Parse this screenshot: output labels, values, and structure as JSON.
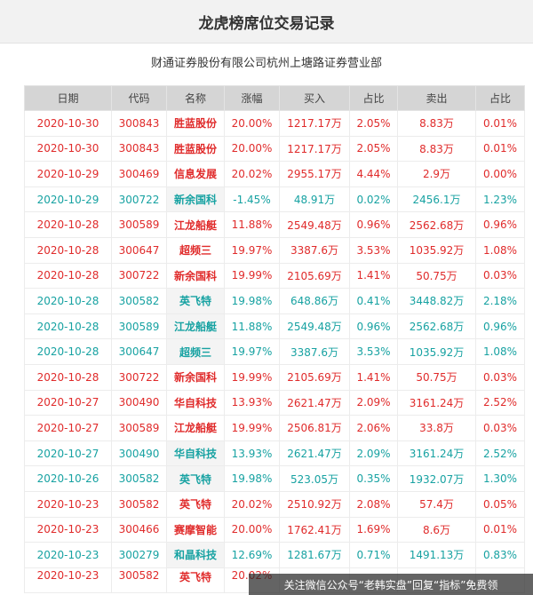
{
  "title": "龙虎榜席位交易记录",
  "subtitle": "财通证券股份有限公司杭州上塘路证券营业部",
  "columns": [
    "日期",
    "代码",
    "名称",
    "涨幅",
    "买入",
    "占比",
    "卖出",
    "占比"
  ],
  "rows": [
    {
      "date": "2020-10-30",
      "code": "300843",
      "name": "胜蓝股份",
      "change": "20.00%",
      "buy": "1217.17万",
      "buy_pct": "2.05%",
      "sell": "8.83万",
      "sell_pct": "0.01%",
      "dir": "up"
    },
    {
      "date": "2020-10-30",
      "code": "300843",
      "name": "胜蓝股份",
      "change": "20.00%",
      "buy": "1217.17万",
      "buy_pct": "2.05%",
      "sell": "8.83万",
      "sell_pct": "0.01%",
      "dir": "up"
    },
    {
      "date": "2020-10-29",
      "code": "300469",
      "name": "信息发展",
      "change": "20.02%",
      "buy": "2955.17万",
      "buy_pct": "4.44%",
      "sell": "2.9万",
      "sell_pct": "0.00%",
      "dir": "up"
    },
    {
      "date": "2020-10-29",
      "code": "300722",
      "name": "新余国科",
      "change": "-1.45%",
      "buy": "48.91万",
      "buy_pct": "0.02%",
      "sell": "2456.1万",
      "sell_pct": "1.23%",
      "dir": "down"
    },
    {
      "date": "2020-10-28",
      "code": "300589",
      "name": "江龙船艇",
      "change": "11.88%",
      "buy": "2549.48万",
      "buy_pct": "0.96%",
      "sell": "2562.68万",
      "sell_pct": "0.96%",
      "dir": "up"
    },
    {
      "date": "2020-10-28",
      "code": "300647",
      "name": "超频三",
      "change": "19.97%",
      "buy": "3387.6万",
      "buy_pct": "3.53%",
      "sell": "1035.92万",
      "sell_pct": "1.08%",
      "dir": "up"
    },
    {
      "date": "2020-10-28",
      "code": "300722",
      "name": "新余国科",
      "change": "19.99%",
      "buy": "2105.69万",
      "buy_pct": "1.41%",
      "sell": "50.75万",
      "sell_pct": "0.03%",
      "dir": "up"
    },
    {
      "date": "2020-10-28",
      "code": "300582",
      "name": "英飞特",
      "change": "19.98%",
      "buy": "648.86万",
      "buy_pct": "0.41%",
      "sell": "3448.82万",
      "sell_pct": "2.18%",
      "dir": "down"
    },
    {
      "date": "2020-10-28",
      "code": "300589",
      "name": "江龙船艇",
      "change": "11.88%",
      "buy": "2549.48万",
      "buy_pct": "0.96%",
      "sell": "2562.68万",
      "sell_pct": "0.96%",
      "dir": "down"
    },
    {
      "date": "2020-10-28",
      "code": "300647",
      "name": "超频三",
      "change": "19.97%",
      "buy": "3387.6万",
      "buy_pct": "3.53%",
      "sell": "1035.92万",
      "sell_pct": "1.08%",
      "dir": "down"
    },
    {
      "date": "2020-10-28",
      "code": "300722",
      "name": "新余国科",
      "change": "19.99%",
      "buy": "2105.69万",
      "buy_pct": "1.41%",
      "sell": "50.75万",
      "sell_pct": "0.03%",
      "dir": "up"
    },
    {
      "date": "2020-10-27",
      "code": "300490",
      "name": "华自科技",
      "change": "13.93%",
      "buy": "2621.47万",
      "buy_pct": "2.09%",
      "sell": "3161.24万",
      "sell_pct": "2.52%",
      "dir": "up"
    },
    {
      "date": "2020-10-27",
      "code": "300589",
      "name": "江龙船艇",
      "change": "19.99%",
      "buy": "2506.81万",
      "buy_pct": "2.06%",
      "sell": "33.8万",
      "sell_pct": "0.03%",
      "dir": "up"
    },
    {
      "date": "2020-10-27",
      "code": "300490",
      "name": "华自科技",
      "change": "13.93%",
      "buy": "2621.47万",
      "buy_pct": "2.09%",
      "sell": "3161.24万",
      "sell_pct": "2.52%",
      "dir": "down"
    },
    {
      "date": "2020-10-26",
      "code": "300582",
      "name": "英飞特",
      "change": "19.98%",
      "buy": "523.05万",
      "buy_pct": "0.35%",
      "sell": "1932.07万",
      "sell_pct": "1.30%",
      "dir": "down"
    },
    {
      "date": "2020-10-23",
      "code": "300582",
      "name": "英飞特",
      "change": "20.02%",
      "buy": "2510.92万",
      "buy_pct": "2.08%",
      "sell": "57.4万",
      "sell_pct": "0.05%",
      "dir": "up"
    },
    {
      "date": "2020-10-23",
      "code": "300466",
      "name": "赛摩智能",
      "change": "20.00%",
      "buy": "1762.41万",
      "buy_pct": "1.69%",
      "sell": "8.6万",
      "sell_pct": "0.01%",
      "dir": "up"
    },
    {
      "date": "2020-10-23",
      "code": "300279",
      "name": "和晶科技",
      "change": "12.69%",
      "buy": "1281.67万",
      "buy_pct": "0.71%",
      "sell": "1491.13万",
      "sell_pct": "0.83%",
      "dir": "down"
    },
    {
      "date": "2020-10-23",
      "code": "300582",
      "name": "英飞特",
      "change": "20.02%",
      "buy": "",
      "buy_pct": "",
      "sell": "",
      "sell_pct": "",
      "dir": "up",
      "partial": true
    }
  ],
  "watermark": "关注微信公众号“老韩实盘”回复“指标”免费领"
}
